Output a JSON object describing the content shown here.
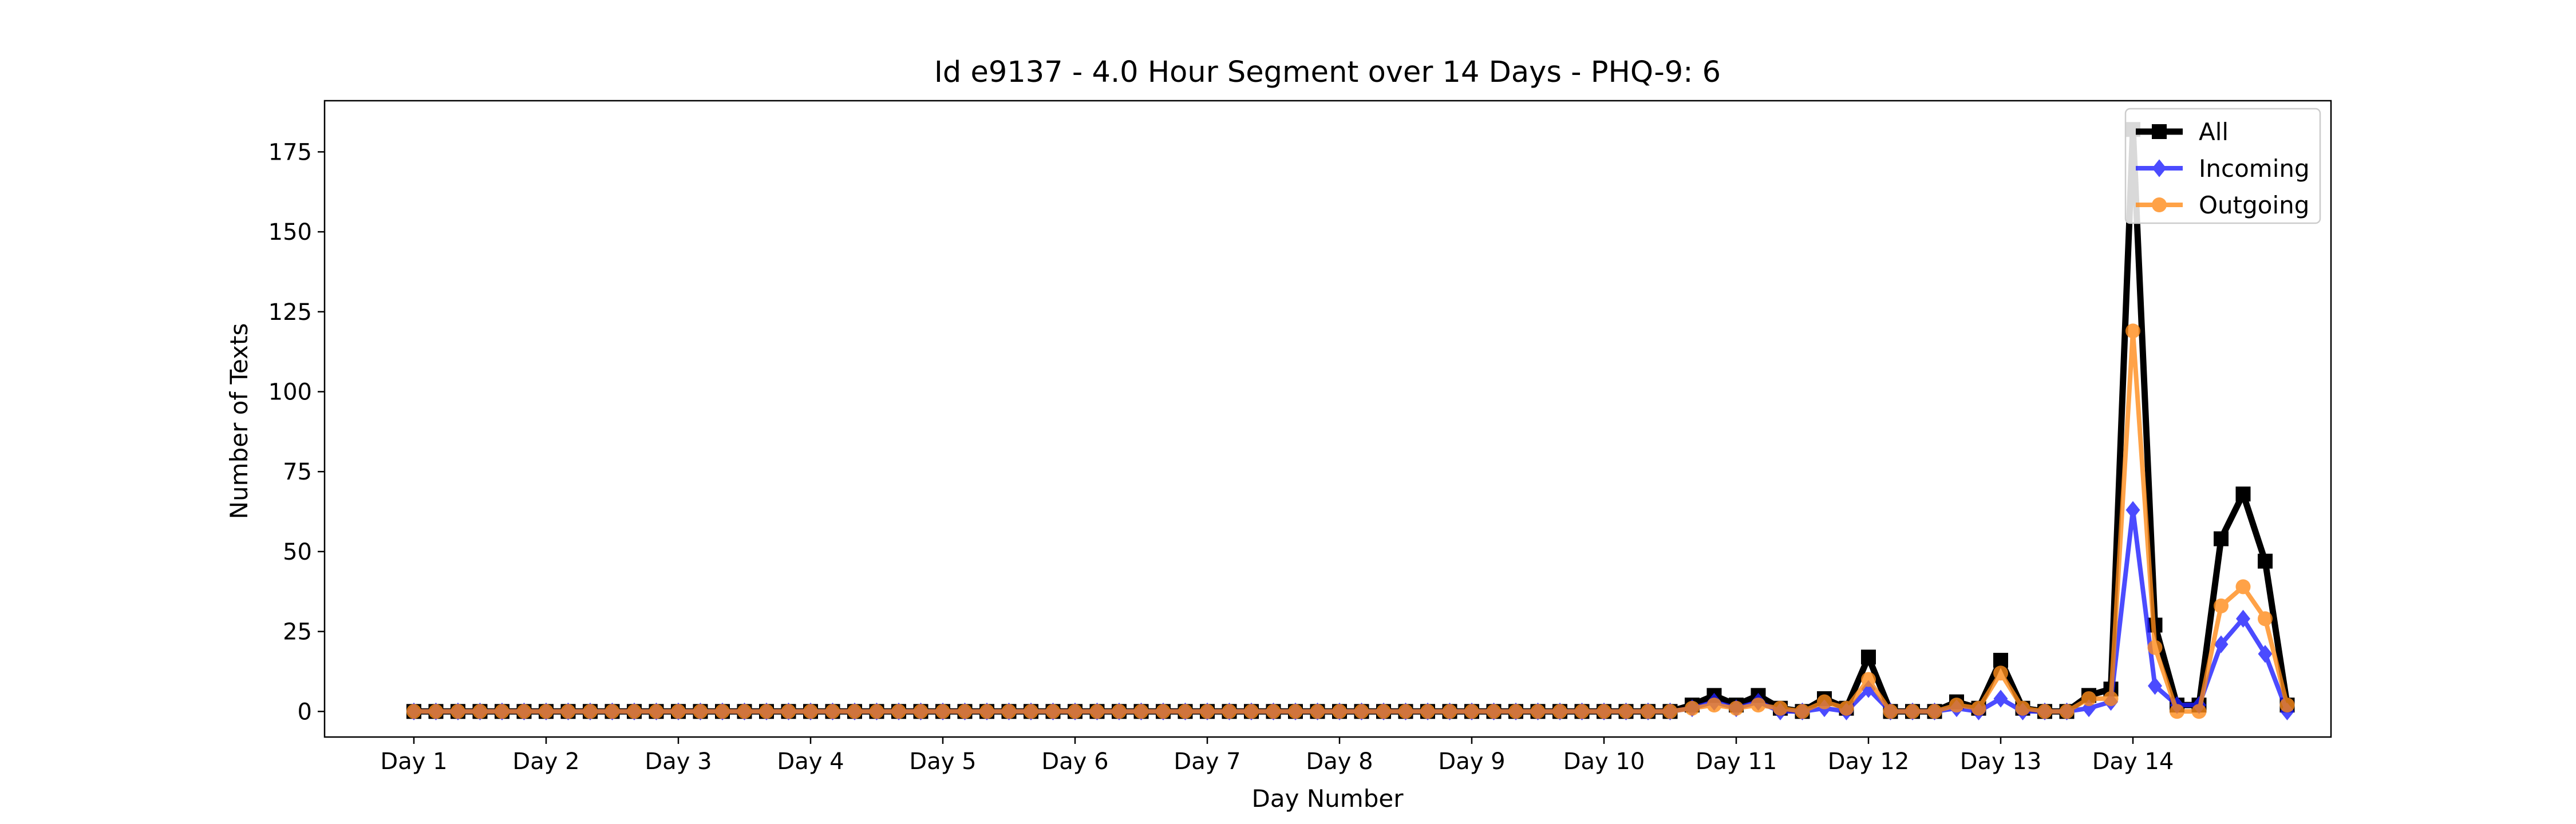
{
  "chart_data": {
    "type": "line",
    "title": "Id e9137 - 4.0 Hour Segment over 14 Days - PHQ-9: 6",
    "xlabel": "Day Number",
    "ylabel": "Number of Texts",
    "ylim": [
      -8,
      191
    ],
    "y_ticks": [
      0,
      25,
      50,
      75,
      100,
      125,
      150,
      175
    ],
    "x_tick_labels": [
      "Day 1",
      "Day 2",
      "Day 3",
      "Day 4",
      "Day 5",
      "Day 6",
      "Day 7",
      "Day 8",
      "Day 9",
      "Day 10",
      "Day 11",
      "Day 12",
      "Day 13",
      "Day 14"
    ],
    "grid": false,
    "legend_position": "top-right",
    "series": [
      {
        "name": "All",
        "color": "#000000",
        "marker": "square",
        "values": [
          0,
          0,
          0,
          0,
          0,
          0,
          0,
          0,
          0,
          0,
          0,
          0,
          0,
          0,
          0,
          0,
          0,
          0,
          0,
          0,
          0,
          0,
          0,
          0,
          0,
          0,
          0,
          0,
          0,
          0,
          0,
          0,
          0,
          0,
          0,
          0,
          0,
          0,
          0,
          0,
          0,
          0,
          0,
          0,
          0,
          0,
          0,
          0,
          0,
          0,
          0,
          0,
          0,
          0,
          0,
          0,
          0,
          0,
          2,
          5,
          2,
          5,
          1,
          0,
          4,
          1,
          17,
          0,
          0,
          0,
          3,
          1,
          16,
          1,
          0,
          0,
          5,
          7,
          182,
          27,
          2,
          2,
          54,
          68,
          47,
          2
        ]
      },
      {
        "name": "Incoming",
        "color": "#1f1fff",
        "marker": "diamond",
        "values": [
          0,
          0,
          0,
          0,
          0,
          0,
          0,
          0,
          0,
          0,
          0,
          0,
          0,
          0,
          0,
          0,
          0,
          0,
          0,
          0,
          0,
          0,
          0,
          0,
          0,
          0,
          0,
          0,
          0,
          0,
          0,
          0,
          0,
          0,
          0,
          0,
          0,
          0,
          0,
          0,
          0,
          0,
          0,
          0,
          0,
          0,
          0,
          0,
          0,
          0,
          0,
          0,
          0,
          0,
          0,
          0,
          0,
          0,
          1,
          3,
          1,
          3,
          0,
          0,
          1,
          0,
          7,
          0,
          0,
          0,
          1,
          0,
          4,
          0,
          0,
          0,
          1,
          3,
          63,
          8,
          2,
          2,
          21,
          29,
          18,
          0
        ]
      },
      {
        "name": "Outgoing",
        "color": "#ff8c1a",
        "marker": "circle",
        "values": [
          0,
          0,
          0,
          0,
          0,
          0,
          0,
          0,
          0,
          0,
          0,
          0,
          0,
          0,
          0,
          0,
          0,
          0,
          0,
          0,
          0,
          0,
          0,
          0,
          0,
          0,
          0,
          0,
          0,
          0,
          0,
          0,
          0,
          0,
          0,
          0,
          0,
          0,
          0,
          0,
          0,
          0,
          0,
          0,
          0,
          0,
          0,
          0,
          0,
          0,
          0,
          0,
          0,
          0,
          0,
          0,
          0,
          0,
          1,
          2,
          1,
          2,
          1,
          0,
          3,
          1,
          10,
          0,
          0,
          0,
          2,
          1,
          12,
          1,
          0,
          0,
          4,
          4,
          119,
          20,
          0,
          0,
          33,
          39,
          29,
          2
        ]
      }
    ]
  }
}
